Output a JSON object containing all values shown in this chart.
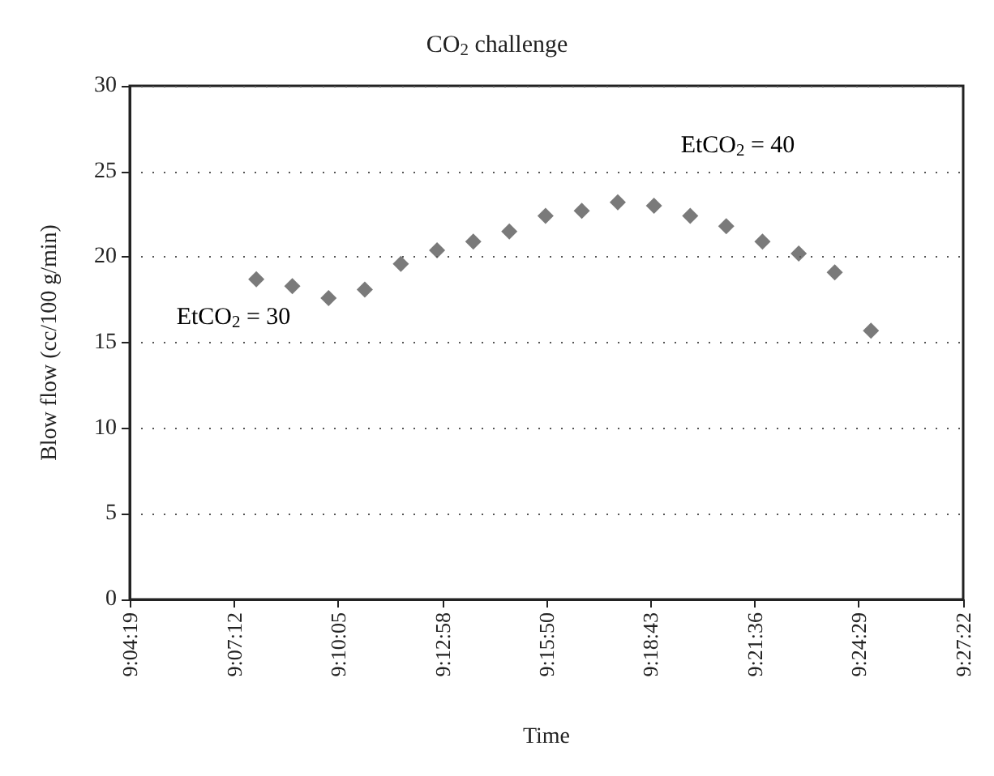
{
  "chart_data": {
    "type": "scatter",
    "title": "CO$_{2}$ challenge",
    "xlabel": "Time",
    "ylabel": "Blow flow (cc/100 g/min)",
    "x": [
      9.1303,
      9.1469,
      9.1636,
      9.1803,
      9.1969,
      9.2136,
      9.2303,
      9.2469,
      9.2636,
      9.2803,
      9.2969,
      9.3136,
      9.3303,
      9.3469,
      9.3636,
      9.3803,
      9.3969,
      9.4136
    ],
    "series": [
      {
        "color": "#595959",
        "values": [
          18.7,
          18.3,
          17.6,
          18.1,
          19.6,
          20.4,
          20.9,
          21.5,
          22.4,
          22.7,
          23.2,
          23.0,
          22.4,
          21.8,
          20.9,
          20.2,
          19.1,
          15.7
        ]
      }
    ],
    "xlim": [
      9.071944,
      9.456111
    ],
    "xticks": [
      {
        "value": 9.071944,
        "label": "9:04:19"
      },
      {
        "value": 9.12,
        "label": "9:07:12"
      },
      {
        "value": 9.168056,
        "label": "9:10:05"
      },
      {
        "value": 9.216111,
        "label": "9:12:58"
      },
      {
        "value": 9.263889,
        "label": "9:15:50"
      },
      {
        "value": 9.311944,
        "label": "9:18:43"
      },
      {
        "value": 9.36,
        "label": "9:21:36"
      },
      {
        "value": 9.408056,
        "label": "9:24:29"
      },
      {
        "value": 9.456111,
        "label": "9:27:22"
      }
    ],
    "ylim": [
      0,
      30
    ],
    "yticks": [
      0,
      5,
      10,
      15,
      20,
      25,
      30
    ],
    "annotations": [
      "EtCO$_{2}$ = 30",
      "EtCO$_{2}$ = 40"
    ],
    "grid": "y",
    "marker": "diamond"
  }
}
